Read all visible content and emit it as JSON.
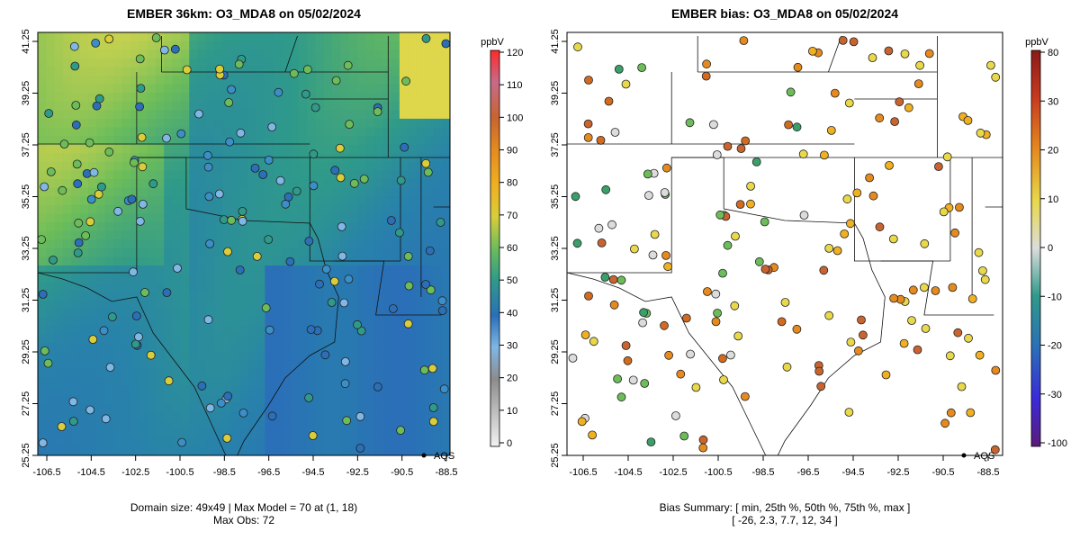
{
  "left_map": {
    "title": "EMBER 36km: O3_MDA8 on 05/02/2024",
    "caption_line1": "Domain size: 49x49 | Max Model = 70 at (1, 18)",
    "caption_line2": "Max Obs: 72",
    "legend_label": "AQS",
    "colorbar_unit": "ppbV",
    "colorbar_ticks": [
      "0",
      "10",
      "20",
      "30",
      "40",
      "50",
      "60",
      "70",
      "80",
      "90",
      "100",
      "110",
      "120"
    ]
  },
  "right_map": {
    "title": "EMBER bias: O3_MDA8 on 05/02/2024",
    "caption_line1": "Bias Summary: [ min, 25th %, 50th %, 75th %, max ]",
    "caption_line2": "[ -26,   2.3,   7.7,   12,   34 ]",
    "legend_label": "AQS",
    "colorbar_unit": "ppbV",
    "colorbar_ticks": [
      "-100",
      "-30",
      "-20",
      "-10",
      "0",
      "10",
      "20",
      "30",
      "80"
    ]
  },
  "axes": {
    "x_ticks": [
      "-106.5",
      "-104.5",
      "-102.5",
      "-100.5",
      "-98.5",
      "-96.5",
      "-94.5",
      "-92.5",
      "-90.5",
      "-88.5"
    ],
    "y_ticks": [
      "25.25",
      "27.25",
      "29.25",
      "31.25",
      "33.25",
      "35.25",
      "37.25",
      "39.25",
      "41.25"
    ],
    "xlim": [
      -107.2,
      -87.8
    ],
    "ylim": [
      25.25,
      41.25
    ]
  },
  "colors": {
    "model_low": "#2a6fb8",
    "model_mid": "#2f9a8a",
    "model_high": "#e8d84a",
    "bias_positive": "#e58a1f",
    "bias_negative": "#3aa06a"
  }
}
